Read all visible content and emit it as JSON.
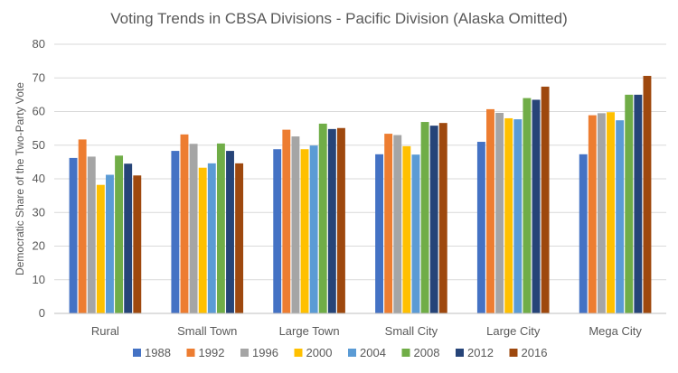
{
  "chart_data": {
    "type": "bar",
    "title": "Voting Trends in CBSA Divisions - Pacific Division (Alaska Omitted)",
    "xlabel": "",
    "ylabel": "Democratic Share of the Two-Party Vote",
    "ylim": [
      0,
      80
    ],
    "yticks": [
      0,
      10,
      20,
      30,
      40,
      50,
      60,
      70,
      80
    ],
    "grid": true,
    "legend_position": "bottom",
    "categories": [
      "Rural",
      "Small Town",
      "Large Town",
      "Small City",
      "Large City",
      "Mega City"
    ],
    "series": [
      {
        "name": "1988",
        "color": "#4472c4",
        "values": [
          46.2,
          48.3,
          48.8,
          47.3,
          51.0,
          47.3
        ]
      },
      {
        "name": "1992",
        "color": "#ed7d31",
        "values": [
          51.7,
          53.2,
          54.6,
          53.4,
          60.7,
          58.9
        ]
      },
      {
        "name": "1996",
        "color": "#a5a5a5",
        "values": [
          46.6,
          50.4,
          52.6,
          53.0,
          59.6,
          59.5
        ]
      },
      {
        "name": "2000",
        "color": "#ffc000",
        "values": [
          38.2,
          43.3,
          48.8,
          49.7,
          58.0,
          59.8
        ]
      },
      {
        "name": "2004",
        "color": "#5b9bd5",
        "values": [
          41.2,
          44.6,
          49.9,
          47.2,
          57.7,
          57.4
        ]
      },
      {
        "name": "2008",
        "color": "#70ad47",
        "values": [
          46.9,
          50.5,
          56.4,
          56.9,
          64.0,
          65.0
        ]
      },
      {
        "name": "2012",
        "color": "#264478",
        "values": [
          44.5,
          48.3,
          54.8,
          55.8,
          63.5,
          65.0
        ]
      },
      {
        "name": "2016",
        "color": "#9e480e",
        "values": [
          41.0,
          44.6,
          55.1,
          56.6,
          67.4,
          70.6
        ]
      }
    ]
  }
}
